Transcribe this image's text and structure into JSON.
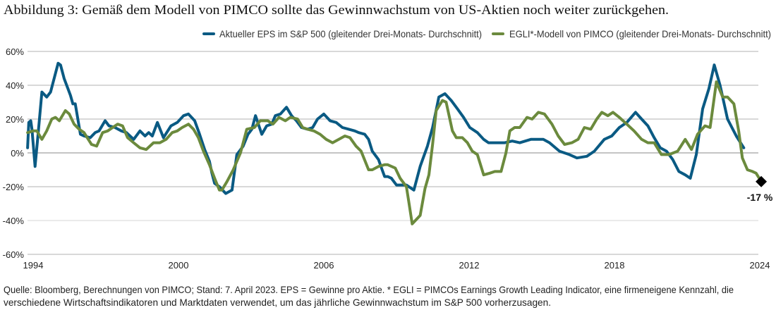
{
  "chart_data": {
    "type": "line",
    "title": "Abbildung 3: Gemäß dem Modell von PIMCO sollte das Gewinnwachstum von US-Aktien noch weiter zurückgehen.",
    "xlabel": "",
    "ylabel": "",
    "xlim": [
      1994,
      2024
    ],
    "ylim": [
      -60,
      60
    ],
    "x_ticks": [
      "1994",
      "2000",
      "2006",
      "2012",
      "2018",
      "2024"
    ],
    "y_ticks": [
      "60%",
      "40%",
      "20%",
      "0%",
      "-20%",
      "-40%",
      "-60%"
    ],
    "y_tick_values": [
      60,
      40,
      20,
      0,
      -20,
      -40,
      -60
    ],
    "grid": "horizontal",
    "legend_position": "top-right",
    "series": [
      {
        "name": "Aktueller EPS im S&P 500 (gleitender Drei-Monats- Durchschnitt)",
        "color": "#0a5a83",
        "points": [
          [
            1993.77,
            3
          ],
          [
            1993.82,
            18
          ],
          [
            1993.9,
            19
          ],
          [
            1993.95,
            14
          ],
          [
            1994.08,
            -8
          ],
          [
            1994.21,
            12
          ],
          [
            1994.36,
            36
          ],
          [
            1994.56,
            33
          ],
          [
            1994.72,
            36
          ],
          [
            1995.03,
            53
          ],
          [
            1995.13,
            52
          ],
          [
            1995.28,
            44
          ],
          [
            1995.54,
            34
          ],
          [
            1995.64,
            29
          ],
          [
            1995.74,
            29
          ],
          [
            1995.95,
            11
          ],
          [
            1996.1,
            10
          ],
          [
            1996.36,
            9
          ],
          [
            1996.56,
            12
          ],
          [
            1996.72,
            13
          ],
          [
            1996.97,
            19
          ],
          [
            1997.13,
            16
          ],
          [
            1997.38,
            15
          ],
          [
            1997.64,
            13
          ],
          [
            1997.85,
            12
          ],
          [
            1998.15,
            8
          ],
          [
            1998.41,
            13
          ],
          [
            1998.62,
            10
          ],
          [
            1998.77,
            12
          ],
          [
            1998.92,
            10
          ],
          [
            1999.13,
            18
          ],
          [
            1999.38,
            9
          ],
          [
            1999.69,
            16
          ],
          [
            1999.95,
            18
          ],
          [
            2000.21,
            22
          ],
          [
            2000.41,
            23
          ],
          [
            2000.67,
            19
          ],
          [
            2000.87,
            11
          ],
          [
            2001.08,
            2
          ],
          [
            2001.28,
            -5
          ],
          [
            2001.38,
            -12
          ],
          [
            2001.49,
            -18
          ],
          [
            2001.69,
            -20
          ],
          [
            2001.95,
            -24
          ],
          [
            2002.21,
            -22
          ],
          [
            2002.41,
            -1
          ],
          [
            2002.67,
            4
          ],
          [
            2002.87,
            11
          ],
          [
            2003.03,
            14
          ],
          [
            2003.18,
            22
          ],
          [
            2003.44,
            11
          ],
          [
            2003.64,
            16
          ],
          [
            2003.85,
            17
          ],
          [
            2004.0,
            22
          ],
          [
            2004.21,
            23
          ],
          [
            2004.46,
            27
          ],
          [
            2004.67,
            22
          ],
          [
            2004.87,
            19
          ],
          [
            2005.08,
            15
          ],
          [
            2005.33,
            14
          ],
          [
            2005.54,
            15
          ],
          [
            2005.74,
            20
          ],
          [
            2006.0,
            23
          ],
          [
            2006.26,
            19
          ],
          [
            2006.51,
            18
          ],
          [
            2006.77,
            15
          ],
          [
            2007.03,
            14
          ],
          [
            2007.28,
            13
          ],
          [
            2007.44,
            12
          ],
          [
            2007.69,
            11
          ],
          [
            2007.85,
            8
          ],
          [
            2008.0,
            1
          ],
          [
            2008.26,
            -4
          ],
          [
            2008.41,
            -10
          ],
          [
            2008.51,
            -14
          ],
          [
            2008.64,
            -14
          ],
          [
            2008.79,
            -15
          ],
          [
            2009.0,
            -19
          ],
          [
            2009.41,
            -19
          ],
          [
            2009.72,
            -22
          ],
          [
            2009.98,
            -8
          ],
          [
            2010.28,
            4
          ],
          [
            2010.49,
            15
          ],
          [
            2010.75,
            33
          ],
          [
            2011.0,
            35
          ],
          [
            2011.26,
            31
          ],
          [
            2011.52,
            26
          ],
          [
            2011.77,
            21
          ],
          [
            2012.03,
            15
          ],
          [
            2012.34,
            12
          ],
          [
            2012.6,
            8
          ],
          [
            2012.8,
            6
          ],
          [
            2013.06,
            6
          ],
          [
            2013.47,
            6
          ],
          [
            2013.78,
            7
          ],
          [
            2014.09,
            6
          ],
          [
            2014.55,
            8
          ],
          [
            2015.06,
            8
          ],
          [
            2015.32,
            6
          ],
          [
            2015.73,
            1
          ],
          [
            2016.14,
            -1
          ],
          [
            2016.45,
            -3
          ],
          [
            2016.86,
            -2
          ],
          [
            2017.17,
            1
          ],
          [
            2017.58,
            8
          ],
          [
            2017.89,
            10
          ],
          [
            2018.2,
            15
          ],
          [
            2018.51,
            18
          ],
          [
            2018.87,
            24
          ],
          [
            2019.12,
            20
          ],
          [
            2019.38,
            16
          ],
          [
            2019.64,
            9
          ],
          [
            2019.89,
            3
          ],
          [
            2020.15,
            1
          ],
          [
            2020.41,
            -4
          ],
          [
            2020.66,
            -11
          ],
          [
            2020.92,
            -13
          ],
          [
            2021.13,
            -15
          ],
          [
            2021.38,
            -1
          ],
          [
            2021.64,
            26
          ],
          [
            2021.9,
            38
          ],
          [
            2022.12,
            52
          ],
          [
            2022.36,
            40
          ],
          [
            2022.67,
            20
          ],
          [
            2023.03,
            10
          ],
          [
            2023.34,
            3
          ]
        ]
      },
      {
        "name": "EGLI*-Modell von PIMCO (gleitender Drei-Monats- Durchschnitt)",
        "color": "#6b8a3d",
        "points": [
          [
            1993.77,
            12
          ],
          [
            1994.0,
            13
          ],
          [
            1994.15,
            13
          ],
          [
            1994.36,
            8
          ],
          [
            1994.56,
            13
          ],
          [
            1994.77,
            20
          ],
          [
            1994.92,
            21
          ],
          [
            1995.08,
            19
          ],
          [
            1995.33,
            25
          ],
          [
            1995.49,
            23
          ],
          [
            1995.69,
            17
          ],
          [
            1995.9,
            14
          ],
          [
            1996.1,
            12
          ],
          [
            1996.41,
            5
          ],
          [
            1996.62,
            4
          ],
          [
            1996.87,
            12
          ],
          [
            1997.08,
            13
          ],
          [
            1997.28,
            15
          ],
          [
            1997.49,
            17
          ],
          [
            1997.69,
            16
          ],
          [
            1997.9,
            9
          ],
          [
            1998.15,
            6
          ],
          [
            1998.41,
            3
          ],
          [
            1998.67,
            2
          ],
          [
            1998.97,
            6
          ],
          [
            1999.23,
            6
          ],
          [
            1999.49,
            8
          ],
          [
            1999.74,
            12
          ],
          [
            1999.95,
            13
          ],
          [
            2000.15,
            15
          ],
          [
            2000.41,
            17
          ],
          [
            2000.62,
            14
          ],
          [
            2000.82,
            9
          ],
          [
            2001.03,
            1
          ],
          [
            2001.28,
            -7
          ],
          [
            2001.49,
            -15
          ],
          [
            2001.69,
            -22
          ],
          [
            2001.79,
            -22
          ],
          [
            2002.0,
            -17
          ],
          [
            2002.26,
            -10
          ],
          [
            2002.56,
            0
          ],
          [
            2002.82,
            14
          ],
          [
            2003.13,
            15
          ],
          [
            2003.38,
            19
          ],
          [
            2003.69,
            19
          ],
          [
            2003.9,
            17
          ],
          [
            2004.15,
            21
          ],
          [
            2004.41,
            19
          ],
          [
            2004.62,
            21
          ],
          [
            2004.92,
            20
          ],
          [
            2005.13,
            15
          ],
          [
            2005.33,
            14
          ],
          [
            2005.59,
            13
          ],
          [
            2005.85,
            11
          ],
          [
            2006.1,
            8
          ],
          [
            2006.36,
            6
          ],
          [
            2006.62,
            8
          ],
          [
            2006.87,
            10
          ],
          [
            2007.08,
            9
          ],
          [
            2007.33,
            4
          ],
          [
            2007.54,
            1
          ],
          [
            2007.85,
            -10
          ],
          [
            2008.0,
            -10
          ],
          [
            2008.26,
            -8
          ],
          [
            2008.51,
            -7
          ],
          [
            2008.64,
            -7
          ],
          [
            2008.95,
            -9
          ],
          [
            2009.15,
            -15
          ],
          [
            2009.41,
            -20
          ],
          [
            2009.51,
            -29
          ],
          [
            2009.65,
            -42
          ],
          [
            2009.98,
            -37
          ],
          [
            2010.18,
            -21
          ],
          [
            2010.34,
            -13
          ],
          [
            2010.49,
            5
          ],
          [
            2010.64,
            25
          ],
          [
            2010.9,
            31
          ],
          [
            2011.05,
            30
          ],
          [
            2011.31,
            13
          ],
          [
            2011.47,
            9
          ],
          [
            2011.72,
            9
          ],
          [
            2011.93,
            6
          ],
          [
            2012.13,
            1
          ],
          [
            2012.34,
            -1
          ],
          [
            2012.6,
            -13
          ],
          [
            2012.85,
            -12
          ],
          [
            2013.06,
            -11
          ],
          [
            2013.32,
            -11
          ],
          [
            2013.52,
            0
          ],
          [
            2013.68,
            13
          ],
          [
            2013.88,
            15
          ],
          [
            2014.09,
            15
          ],
          [
            2014.39,
            21
          ],
          [
            2014.6,
            20
          ],
          [
            2014.86,
            24
          ],
          [
            2015.11,
            23
          ],
          [
            2015.42,
            17
          ],
          [
            2015.68,
            10
          ],
          [
            2015.94,
            5
          ],
          [
            2016.24,
            6
          ],
          [
            2016.5,
            8
          ],
          [
            2016.76,
            15
          ],
          [
            2017.02,
            14
          ],
          [
            2017.27,
            20
          ],
          [
            2017.48,
            24
          ],
          [
            2017.73,
            22
          ],
          [
            2017.94,
            24
          ],
          [
            2018.2,
            21
          ],
          [
            2018.51,
            17
          ],
          [
            2018.81,
            13
          ],
          [
            2019.12,
            8
          ],
          [
            2019.38,
            6
          ],
          [
            2019.64,
            6
          ],
          [
            2019.94,
            -1
          ],
          [
            2020.25,
            -1
          ],
          [
            2020.61,
            1
          ],
          [
            2020.92,
            8
          ],
          [
            2021.18,
            2
          ],
          [
            2021.43,
            11
          ],
          [
            2021.74,
            16
          ],
          [
            2021.95,
            15
          ],
          [
            2022.21,
            42
          ],
          [
            2022.47,
            33
          ],
          [
            2022.67,
            33
          ],
          [
            2022.93,
            29
          ],
          [
            2023.13,
            13
          ],
          [
            2023.28,
            -3
          ],
          [
            2023.49,
            -10
          ],
          [
            2023.7,
            -11
          ],
          [
            2023.85,
            -12
          ],
          [
            2024.06,
            -17
          ]
        ]
      }
    ],
    "annotation": {
      "x": 2024.06,
      "y": -17,
      "label": "-17 %",
      "marker": "diamond",
      "color": "#000000"
    },
    "footnote": [
      "Quelle: Bloomberg, Berechnungen von PIMCO; Stand: 7. April 2023. EPS = Gewinne pro Aktie. * EGLI = PIMCOs Earnings Growth Leading Indicator, eine firmeneigene Kennzahl, die",
      "verschiedene Wirtschaftsindikatoren und Marktdaten verwendet, um das jährliche Gewinnwachstum im S&P 500 vorherzusagen."
    ]
  }
}
